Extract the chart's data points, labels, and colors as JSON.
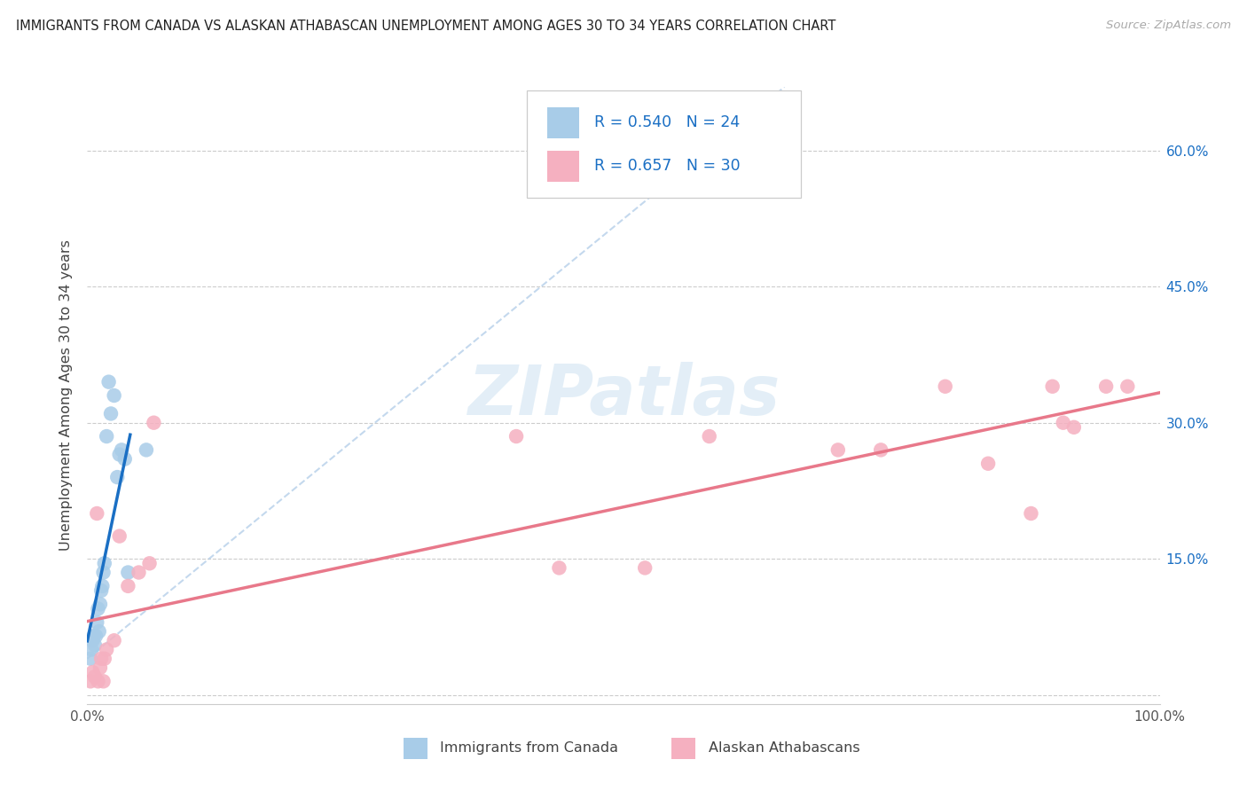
{
  "title": "IMMIGRANTS FROM CANADA VS ALASKAN ATHABASCAN UNEMPLOYMENT AMONG AGES 30 TO 34 YEARS CORRELATION CHART",
  "source": "Source: ZipAtlas.com",
  "ylabel": "Unemployment Among Ages 30 to 34 years",
  "xlim": [
    0,
    1.0
  ],
  "ylim": [
    -0.01,
    0.67
  ],
  "yticks": [
    0.0,
    0.15,
    0.3,
    0.45,
    0.6
  ],
  "ytick_labels_right": [
    "",
    "15.0%",
    "30.0%",
    "45.0%",
    "60.0%"
  ],
  "xticks": [
    0.0,
    0.1,
    0.2,
    0.3,
    0.4,
    0.5,
    0.6,
    0.7,
    0.8,
    0.9,
    1.0
  ],
  "xticklabels": [
    "0.0%",
    "",
    "",
    "",
    "",
    "",
    "",
    "",
    "",
    "",
    "100.0%"
  ],
  "watermark_text": "ZIPatlas",
  "R1": "0.540",
  "N1": "24",
  "R2": "0.657",
  "N2": "30",
  "color_blue_scatter": "#a8cce8",
  "color_pink_scatter": "#f5b0c0",
  "color_blue_line": "#1a6fc4",
  "color_pink_line": "#e8788a",
  "color_diag_line": "#b0cce8",
  "legend_label1": "Immigrants from Canada",
  "legend_label2": "Alaskan Athabascans",
  "canada_x": [
    0.003,
    0.004,
    0.005,
    0.006,
    0.007,
    0.008,
    0.009,
    0.01,
    0.011,
    0.012,
    0.013,
    0.014,
    0.015,
    0.016,
    0.018,
    0.02,
    0.022,
    0.025,
    0.028,
    0.03,
    0.032,
    0.035,
    0.038,
    0.055
  ],
  "canada_y": [
    0.04,
    0.05,
    0.06,
    0.065,
    0.055,
    0.065,
    0.08,
    0.095,
    0.07,
    0.1,
    0.115,
    0.12,
    0.135,
    0.145,
    0.285,
    0.345,
    0.31,
    0.33,
    0.24,
    0.265,
    0.27,
    0.26,
    0.135,
    0.27
  ],
  "athabascan_x": [
    0.003,
    0.005,
    0.007,
    0.009,
    0.01,
    0.012,
    0.013,
    0.015,
    0.016,
    0.018,
    0.025,
    0.03,
    0.038,
    0.048,
    0.058,
    0.062,
    0.4,
    0.44,
    0.52,
    0.58,
    0.7,
    0.74,
    0.8,
    0.84,
    0.88,
    0.9,
    0.91,
    0.92,
    0.95,
    0.97
  ],
  "athabascan_y": [
    0.015,
    0.025,
    0.02,
    0.2,
    0.015,
    0.03,
    0.04,
    0.015,
    0.04,
    0.05,
    0.06,
    0.175,
    0.12,
    0.135,
    0.145,
    0.3,
    0.285,
    0.14,
    0.14,
    0.285,
    0.27,
    0.27,
    0.34,
    0.255,
    0.2,
    0.34,
    0.3,
    0.295,
    0.34,
    0.34
  ]
}
